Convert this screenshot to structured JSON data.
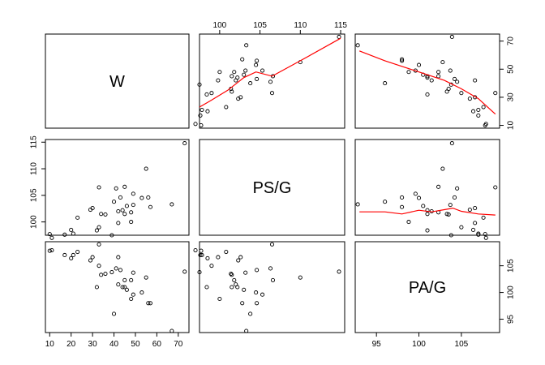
{
  "chart_data": {
    "type": "scatter",
    "subtype": "scatterplot-matrix",
    "variables": [
      "W",
      "PS/G",
      "PA/G"
    ],
    "smoother_color": "#ff0000",
    "point_color": "#000000",
    "grid": false,
    "ranges": {
      "W": [
        8,
        75
      ],
      "PS/G": [
        97.5,
        115.5
      ],
      "PA/G": [
        92.5,
        109.5
      ]
    },
    "ticks": {
      "W": [
        10,
        20,
        30,
        40,
        50,
        60,
        70
      ],
      "PS/G": [
        100,
        105,
        110,
        115
      ],
      "PA/G": [
        95,
        100,
        105
      ]
    },
    "tick_labels": {
      "W_bottom": [
        "10",
        "20",
        "30",
        "40",
        "50",
        "60",
        "70"
      ],
      "W_right": [
        "10",
        "30",
        "50",
        "70"
      ],
      "PS_top": [
        "100",
        "105",
        "110",
        "115"
      ],
      "PS_left": [
        "100",
        "105",
        "110",
        "115"
      ],
      "PA_bottom": [
        "95",
        "100",
        "105"
      ],
      "PA_right": [
        "95",
        "100",
        "105"
      ]
    },
    "points": [
      {
        "W": 10,
        "PS": 97.7,
        "PA": 107.8
      },
      {
        "W": 11,
        "PS": 97.0,
        "PA": 107.9
      },
      {
        "W": 17,
        "PS": 97.6,
        "PA": 107.0
      },
      {
        "W": 20,
        "PS": 98.5,
        "PA": 106.4
      },
      {
        "W": 21,
        "PS": 97.8,
        "PA": 107.0
      },
      {
        "W": 23,
        "PS": 100.8,
        "PA": 107.6
      },
      {
        "W": 29,
        "PS": 102.3,
        "PA": 106.0
      },
      {
        "W": 30,
        "PS": 102.6,
        "PA": 106.6
      },
      {
        "W": 32,
        "PS": 98.4,
        "PA": 101.0
      },
      {
        "W": 33,
        "PS": 99.0,
        "PA": 105.0
      },
      {
        "W": 33,
        "PS": 106.5,
        "PA": 109.0
      },
      {
        "W": 34,
        "PS": 101.5,
        "PA": 103.3
      },
      {
        "W": 36,
        "PS": 101.4,
        "PA": 103.5
      },
      {
        "W": 39,
        "PS": 97.5,
        "PA": 103.8
      },
      {
        "W": 40,
        "PS": 103.8,
        "PA": 96.0
      },
      {
        "W": 41,
        "PS": 106.3,
        "PA": 104.5
      },
      {
        "W": 42,
        "PS": 102.0,
        "PA": 101.5
      },
      {
        "W": 42,
        "PS": 99.8,
        "PA": 106.6
      },
      {
        "W": 43,
        "PS": 104.6,
        "PA": 104.2
      },
      {
        "W": 44,
        "PS": 102.2,
        "PA": 101.0
      },
      {
        "W": 45,
        "PS": 101.5,
        "PA": 101.0
      },
      {
        "W": 45,
        "PS": 106.6,
        "PA": 102.3
      },
      {
        "W": 46,
        "PS": 103.0,
        "PA": 100.5
      },
      {
        "W": 48,
        "PS": 101.8,
        "PA": 102.3
      },
      {
        "W": 48,
        "PS": 100.0,
        "PA": 98.8
      },
      {
        "W": 49,
        "PS": 105.3,
        "PA": 99.6
      },
      {
        "W": 49,
        "PS": 103.2,
        "PA": 103.7
      },
      {
        "W": 53,
        "PS": 104.5,
        "PA": 100.0
      },
      {
        "W": 55,
        "PS": 110.0,
        "PA": 102.8
      },
      {
        "W": 56,
        "PS": 104.6,
        "PA": 98.0
      },
      {
        "W": 57,
        "PS": 102.8,
        "PA": 98.0
      },
      {
        "W": 67,
        "PS": 103.3,
        "PA": 92.8
      },
      {
        "W": 73,
        "PS": 114.8,
        "PA": 103.9
      }
    ],
    "smoothers": {
      "W_vs_PS": [
        [
          97.5,
          23
        ],
        [
          99.0,
          28
        ],
        [
          101.0,
          35
        ],
        [
          103.0,
          44
        ],
        [
          104.5,
          48
        ],
        [
          106.5,
          45
        ],
        [
          110.0,
          56
        ],
        [
          115.0,
          72
        ]
      ],
      "W_vs_PA": [
        [
          93.0,
          63
        ],
        [
          96.0,
          56
        ],
        [
          100.0,
          48
        ],
        [
          103.0,
          42
        ],
        [
          105.0,
          36
        ],
        [
          107.0,
          29
        ],
        [
          109.0,
          18
        ]
      ],
      "PS_vs_PA": [
        [
          93.0,
          101.9
        ],
        [
          96.0,
          101.9
        ],
        [
          98.0,
          101.5
        ],
        [
          100.0,
          102.2
        ],
        [
          101.5,
          101.9
        ],
        [
          103.0,
          102.3
        ],
        [
          104.0,
          102.6
        ],
        [
          105.0,
          102.0
        ],
        [
          107.0,
          101.5
        ],
        [
          109.0,
          101.3
        ]
      ]
    }
  }
}
